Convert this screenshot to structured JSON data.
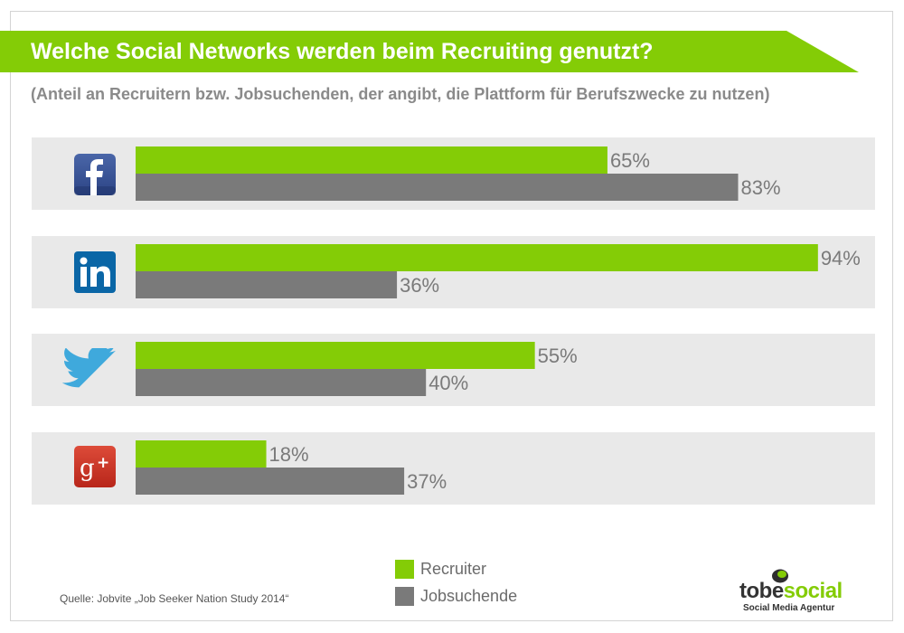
{
  "title": "Welche Social Networks werden beim Recruiting genutzt?",
  "subtitle": "(Anteil an Recruitern bzw. Jobsuchenden, der angibt, die Plattform für Berufszwecke zu nutzen)",
  "colors": {
    "recruiter": "#84cc06",
    "jobsuchende": "#7a7a7a",
    "row_bg": "#e9e9e9",
    "banner": "#84cc06"
  },
  "chart_data": {
    "type": "bar",
    "orientation": "horizontal",
    "categories": [
      "Facebook",
      "LinkedIn",
      "Twitter",
      "Google+"
    ],
    "category_icons": [
      "facebook-icon",
      "linkedin-icon",
      "twitter-icon",
      "google-plus-icon"
    ],
    "series": [
      {
        "name": "Recruiter",
        "values": [
          65,
          94,
          55,
          18
        ]
      },
      {
        "name": "Jobsuchende",
        "values": [
          83,
          36,
          40,
          37
        ]
      }
    ],
    "data_labels": [
      [
        "65%",
        "94%",
        "55%",
        "18%"
      ],
      [
        "83%",
        "36%",
        "40%",
        "37%"
      ]
    ],
    "xlim": [
      0,
      100
    ],
    "unit": "%",
    "grid": false,
    "legend_position": "bottom-center"
  },
  "legend": [
    {
      "label": "Recruiter"
    },
    {
      "label": "Jobsuchende"
    }
  ],
  "source": "Quelle: Jobvite „Job Seeker Nation Study 2014“",
  "logo": {
    "word_left": "tobe",
    "word_right": "social",
    "tagline": "Social Media Agentur",
    "color_left": "#333333",
    "color_right": "#84cc06"
  }
}
